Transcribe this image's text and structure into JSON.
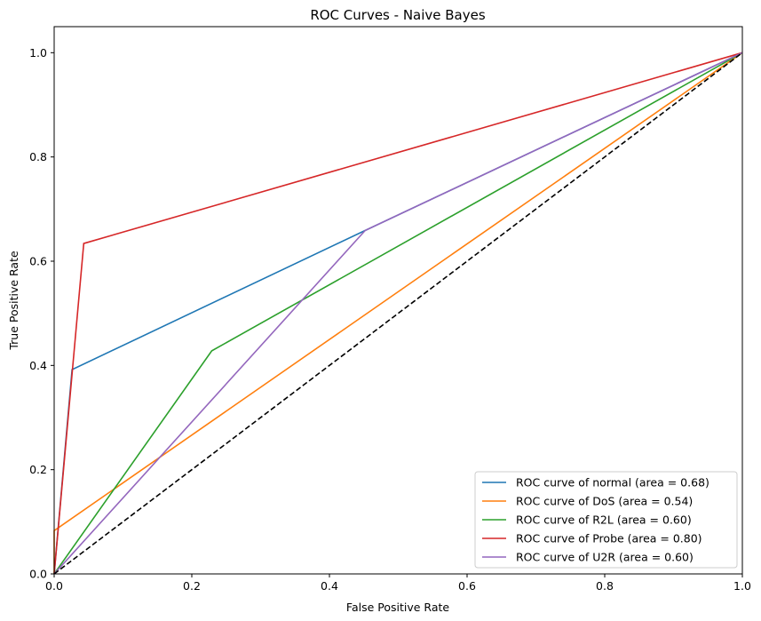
{
  "chart_data": {
    "type": "line",
    "title": "ROC Curves - Naive Bayes",
    "xlabel": "False Positive Rate",
    "ylabel": "True Positive Rate",
    "xlim": [
      0.0,
      1.0
    ],
    "ylim": [
      0.0,
      1.05
    ],
    "xticks": [
      0.0,
      0.2,
      0.4,
      0.6,
      0.8,
      1.0
    ],
    "xtick_labels": [
      "0.0",
      "0.2",
      "0.4",
      "0.6",
      "0.8",
      "1.0"
    ],
    "yticks": [
      0.0,
      0.2,
      0.4,
      0.6,
      0.8,
      1.0
    ],
    "ytick_labels": [
      "0.0",
      "0.2",
      "0.4",
      "0.6",
      "0.8",
      "1.0"
    ],
    "grid": false,
    "legend_position": "lower-right",
    "series": [
      {
        "name": "ROC curve of normal (area = 0.68)",
        "color": "#1f77b4",
        "x": [
          0.0,
          0.026,
          0.452,
          1.0
        ],
        "y": [
          0.0,
          0.392,
          0.659,
          1.0
        ]
      },
      {
        "name": "ROC curve of DoS (area = 0.54)",
        "color": "#ff7f0e",
        "x": [
          0.0,
          0.0,
          1.0
        ],
        "y": [
          0.0,
          0.083,
          1.0
        ]
      },
      {
        "name": "ROC curve of R2L (area = 0.60)",
        "color": "#2ca02c",
        "x": [
          0.0,
          0.229,
          1.0
        ],
        "y": [
          0.0,
          0.428,
          1.0
        ]
      },
      {
        "name": "ROC curve of Probe (area = 0.80)",
        "color": "#d62728",
        "x": [
          0.0,
          0.043,
          1.0
        ],
        "y": [
          0.0,
          0.634,
          1.0
        ]
      },
      {
        "name": "ROC curve of U2R (area = 0.60)",
        "color": "#9467bd",
        "x": [
          0.0,
          0.452,
          1.0
        ],
        "y": [
          0.0,
          0.659,
          1.0
        ]
      }
    ],
    "reference_line": {
      "color": "#000000",
      "x": [
        0.0,
        1.0
      ],
      "y": [
        0.0,
        1.0
      ],
      "style": "dashed"
    }
  }
}
